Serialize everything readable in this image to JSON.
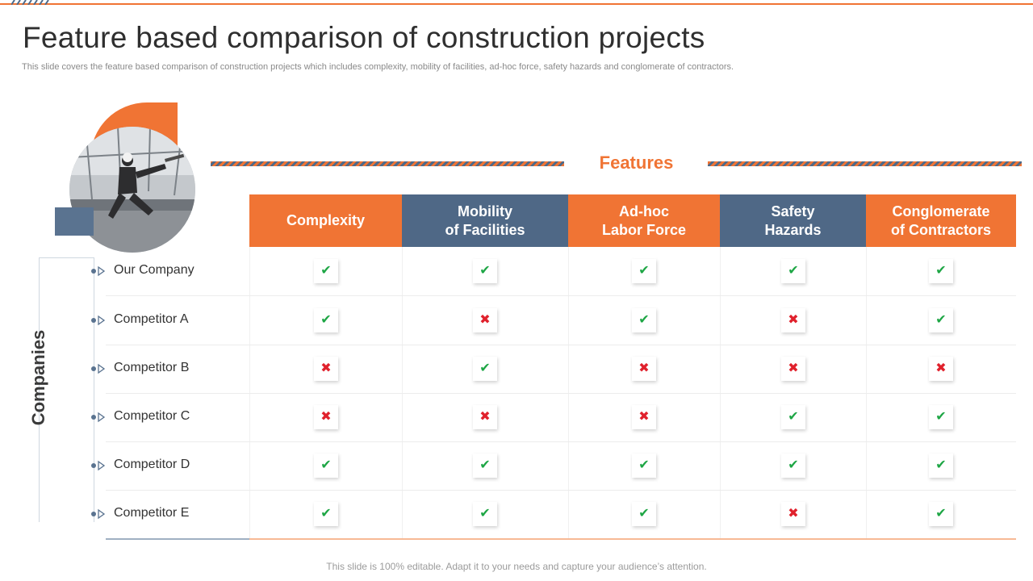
{
  "slide": {
    "title": "Feature based comparison of construction projects",
    "subtitle": "This slide covers the feature based comparison of construction projects which includes complexity, mobility of facilities, ad-hoc force, safety hazards and conglomerate of contractors.",
    "footer": "This slide is 100% editable. Adapt it to your needs and capture your audience’s attention."
  },
  "features_heading": "Features",
  "companies_heading": "Companies",
  "features": [
    {
      "line1": "Complexity",
      "line2": ""
    },
    {
      "line1": "Mobility",
      "line2": "of Facilities"
    },
    {
      "line1": "Ad-hoc",
      "line2": "Labor Force"
    },
    {
      "line1": "Safety",
      "line2": "Hazards"
    },
    {
      "line1": "Conglomerate",
      "line2": "of Contractors"
    }
  ],
  "rows": [
    {
      "company": "Our Company",
      "marks": [
        true,
        true,
        true,
        true,
        true
      ]
    },
    {
      "company": "Competitor A",
      "marks": [
        true,
        false,
        true,
        false,
        true
      ]
    },
    {
      "company": "Competitor B",
      "marks": [
        false,
        true,
        false,
        false,
        false
      ]
    },
    {
      "company": "Competitor C",
      "marks": [
        false,
        false,
        false,
        true,
        true
      ]
    },
    {
      "company": "Competitor D",
      "marks": [
        true,
        true,
        true,
        true,
        true
      ]
    },
    {
      "company": "Competitor E",
      "marks": [
        true,
        true,
        true,
        false,
        true
      ]
    }
  ],
  "colors": {
    "accent": "#f07434",
    "secondary": "#4f6886",
    "check": "#1ea645",
    "cross": "#e0212c"
  },
  "icons": {
    "check": "check-icon",
    "cross": "cross-icon",
    "marker": "row-marker-icon"
  }
}
